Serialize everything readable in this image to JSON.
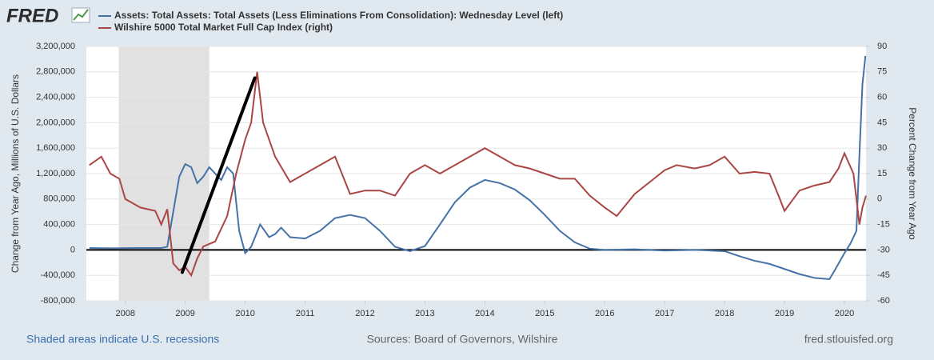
{
  "chart_data": {
    "type": "line",
    "logo": "FRED",
    "xlim": [
      2007.35,
      2020.36
    ],
    "xticks": [
      2008,
      2009,
      2010,
      2011,
      2012,
      2013,
      2014,
      2015,
      2016,
      2017,
      2018,
      2019,
      2020
    ],
    "ylim": [
      -800000,
      3200000
    ],
    "yticks": [
      {
        "value": -800000,
        "label": "-800,000"
      },
      {
        "value": -400000,
        "label": "-400,000"
      },
      0,
      {
        "value": 400000,
        "label": "400,000"
      },
      {
        "value": 800000,
        "label": "800,000"
      },
      {
        "value": 1200000,
        "label": "1,200,000"
      },
      {
        "value": 1600000,
        "label": "1,600,000"
      },
      {
        "value": 2000000,
        "label": "2,000,000"
      },
      {
        "value": 2400000,
        "label": "2,400,000"
      },
      {
        "value": 2800000,
        "label": "2,800,000"
      },
      {
        "value": 3200000,
        "label": "3,200,000"
      }
    ],
    "y2lim": [
      -60,
      90
    ],
    "y2ticks": [
      -60,
      -45,
      -30,
      -15,
      0,
      15,
      30,
      45,
      60,
      75,
      90
    ],
    "ylabel": "Change from Year Ago, Millions of U.S. Dollars",
    "y2label": "Percent Change from Year Ago",
    "grid": true,
    "recessions": [
      [
        2007.89,
        2009.4
      ]
    ],
    "recession_color": "#e1e1e1",
    "series": [
      {
        "name": "Assets: Total Assets: Total Assets (Less Eliminations From Consolidation): Wednesday Level (left)",
        "color": "#4572a7",
        "axis": "y",
        "x": [
          2007.4,
          2007.8,
          2008.2,
          2008.6,
          2008.7,
          2008.8,
          2008.9,
          2009.0,
          2009.1,
          2009.2,
          2009.3,
          2009.4,
          2009.5,
          2009.6,
          2009.7,
          2009.8,
          2009.9,
          2010.0,
          2010.1,
          2010.25,
          2010.4,
          2010.5,
          2010.6,
          2010.75,
          2011.0,
          2011.25,
          2011.5,
          2011.75,
          2012.0,
          2012.25,
          2012.5,
          2012.75,
          2013.0,
          2013.25,
          2013.5,
          2013.75,
          2014.0,
          2014.25,
          2014.5,
          2014.75,
          2015.0,
          2015.25,
          2015.5,
          2015.75,
          2016.0,
          2016.5,
          2017.0,
          2017.5,
          2018.0,
          2018.25,
          2018.5,
          2018.75,
          2019.0,
          2019.25,
          2019.5,
          2019.75,
          2019.85,
          2020.0,
          2020.1,
          2020.2,
          2020.25,
          2020.3,
          2020.35
        ],
        "values": [
          30000,
          25000,
          30000,
          30000,
          50000,
          600000,
          1150000,
          1350000,
          1300000,
          1050000,
          1150000,
          1300000,
          1200000,
          1100000,
          1300000,
          1200000,
          300000,
          -50000,
          50000,
          400000,
          200000,
          250000,
          350000,
          200000,
          180000,
          300000,
          500000,
          550000,
          500000,
          300000,
          50000,
          -20000,
          60000,
          400000,
          750000,
          980000,
          1100000,
          1050000,
          950000,
          780000,
          550000,
          300000,
          120000,
          20000,
          0,
          10000,
          -10000,
          0,
          -20000,
          -100000,
          -170000,
          -220000,
          -300000,
          -380000,
          -440000,
          -460000,
          -300000,
          -50000,
          100000,
          300000,
          1500000,
          2600000,
          3050000
        ]
      },
      {
        "name": "Wilshire 5000 Total Market Full Cap Index (right)",
        "color": "#aa4643",
        "axis": "y2",
        "x": [
          2007.4,
          2007.6,
          2007.75,
          2007.9,
          2008.0,
          2008.25,
          2008.5,
          2008.6,
          2008.7,
          2008.8,
          2008.9,
          2009.0,
          2009.1,
          2009.2,
          2009.3,
          2009.5,
          2009.7,
          2009.85,
          2010.0,
          2010.1,
          2010.2,
          2010.3,
          2010.5,
          2010.75,
          2011.0,
          2011.25,
          2011.5,
          2011.75,
          2012.0,
          2012.25,
          2012.5,
          2012.75,
          2013.0,
          2013.25,
          2013.5,
          2013.75,
          2014.0,
          2014.25,
          2014.5,
          2014.75,
          2015.0,
          2015.25,
          2015.5,
          2015.75,
          2016.0,
          2016.2,
          2016.5,
          2016.75,
          2017.0,
          2017.2,
          2017.5,
          2017.75,
          2018.0,
          2018.25,
          2018.5,
          2018.75,
          2018.9,
          2019.0,
          2019.25,
          2019.5,
          2019.75,
          2019.9,
          2020.0,
          2020.15,
          2020.25,
          2020.3,
          2020.36
        ],
        "values": [
          20,
          25,
          15,
          12,
          0,
          -5,
          -7,
          -15,
          -6,
          -38,
          -42,
          -40,
          -45,
          -35,
          -28,
          -25,
          -10,
          15,
          35,
          45,
          75,
          45,
          25,
          10,
          15,
          20,
          25,
          3,
          5,
          5,
          2,
          15,
          20,
          15,
          20,
          25,
          30,
          25,
          20,
          18,
          15,
          12,
          12,
          2,
          -5,
          -10,
          3,
          10,
          17,
          20,
          18,
          20,
          25,
          15,
          16,
          15,
          2,
          -7,
          5,
          8,
          10,
          18,
          27,
          15,
          -15,
          -5,
          2
        ]
      }
    ],
    "annotations": [
      {
        "color": "#000000",
        "x": [
          2008.95,
          2010.16
        ],
        "y": [
          -352000,
          2704000
        ]
      }
    ],
    "footer": {
      "left": "Shaded areas indicate U.S. recessions",
      "center": "Sources: Board of Governors, Wilshire",
      "right": "fred.stlouisfed.org"
    }
  }
}
